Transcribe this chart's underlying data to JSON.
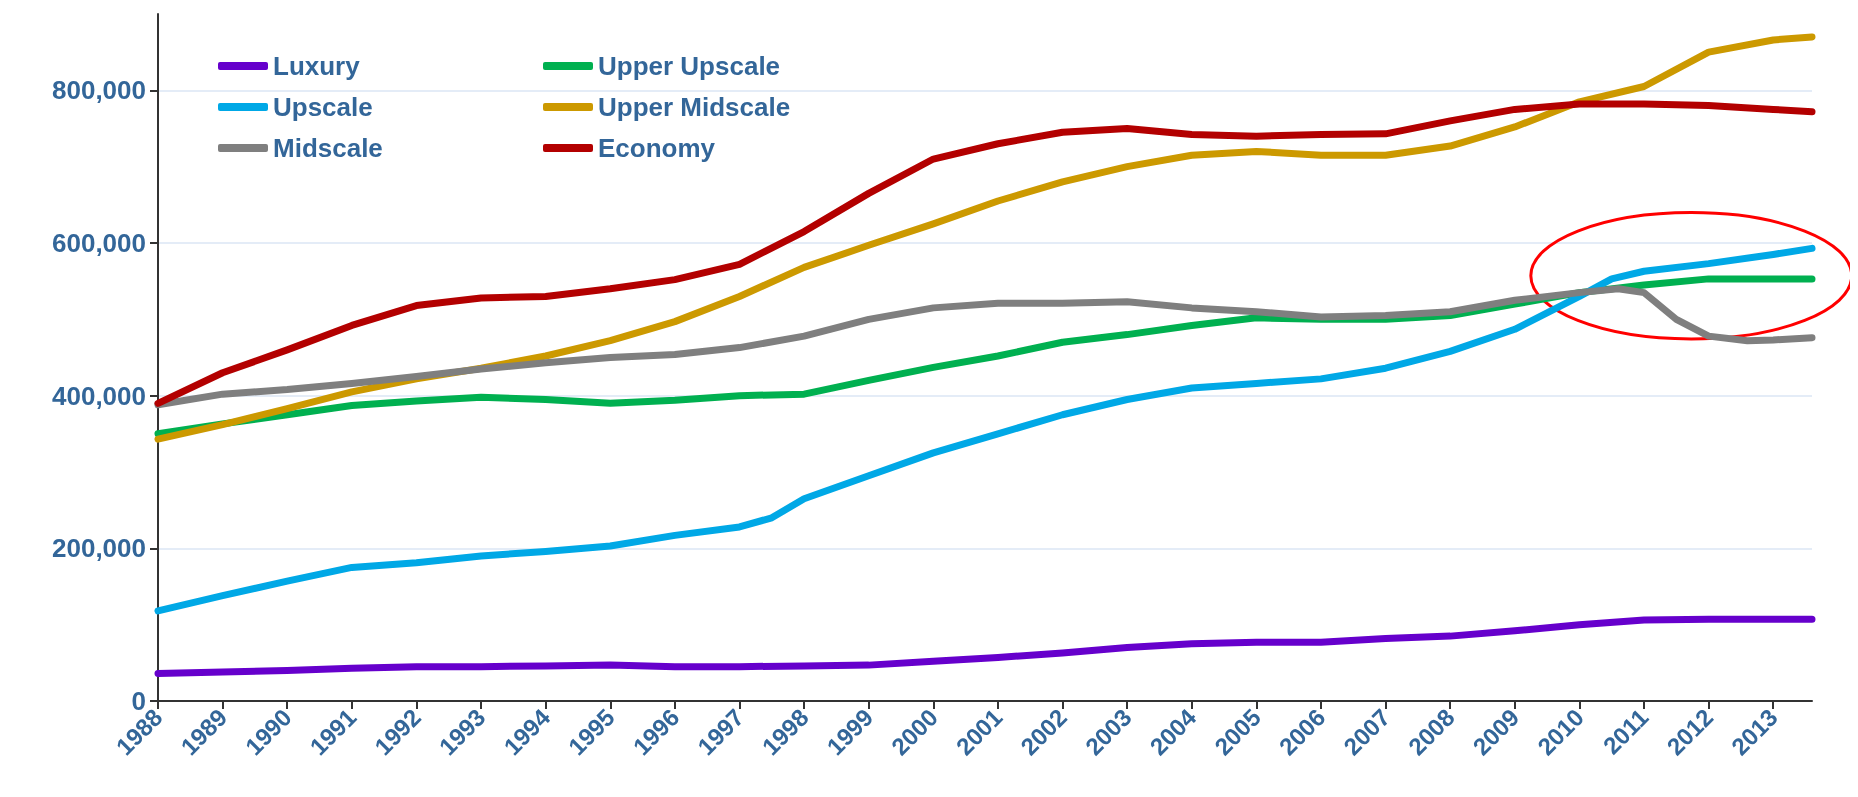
{
  "chart_data": {
    "type": "line",
    "xlim": [
      1988,
      2013.6
    ],
    "xticks": [
      1988,
      1989,
      1990,
      1991,
      1992,
      1993,
      1994,
      1995,
      1996,
      1997,
      1998,
      1999,
      2000,
      2001,
      2002,
      2003,
      2004,
      2005,
      2006,
      2007,
      2008,
      2009,
      2010,
      2011,
      2012,
      2013
    ],
    "ylim": [
      0,
      900000
    ],
    "yticks": [
      0,
      {
        "value": 200000,
        "label": "200,000"
      },
      {
        "value": 400000,
        "label": "400,000"
      },
      {
        "value": 600000,
        "label": "600,000"
      },
      {
        "value": 800000,
        "label": "800,000"
      }
    ],
    "grid": "y",
    "legend": "top left",
    "marker": "none",
    "line_style": "solid",
    "series": [
      {
        "name": "Luxury",
        "color": "#6600cc",
        "x": [
          1988,
          1989,
          1990,
          1991,
          1992,
          1993,
          1994,
          1995,
          1996,
          1997,
          1998,
          1999,
          2000,
          2001,
          2002,
          2003,
          2004,
          2005,
          2006,
          2007,
          2008,
          2009,
          2010,
          2011,
          2012,
          2013,
          2013.6
        ],
        "values": [
          36000,
          38000,
          40000,
          43000,
          45000,
          45000,
          46000,
          47000,
          45000,
          45000,
          46000,
          47000,
          52000,
          57000,
          63000,
          70000,
          75000,
          77000,
          77000,
          82000,
          85000,
          92000,
          100000,
          106000,
          107000,
          107000,
          107000
        ]
      },
      {
        "name": "Upper Upscale",
        "color": "#00b050",
        "x": [
          1988,
          1989,
          1990,
          1991,
          1992,
          1993,
          1994,
          1995,
          1996,
          1997,
          1998,
          1999,
          2000,
          2001,
          2002,
          2003,
          2004,
          2005,
          2006,
          2007,
          2008,
          2009,
          2010,
          2011,
          2012,
          2013,
          2013.6
        ],
        "values": [
          350000,
          363000,
          375000,
          387000,
          393000,
          398000,
          395000,
          390000,
          394000,
          400000,
          402000,
          420000,
          437000,
          452000,
          470000,
          480000,
          492000,
          502000,
          500000,
          500000,
          505000,
          520000,
          535000,
          545000,
          553000,
          553000,
          553000
        ]
      },
      {
        "name": "Upscale",
        "color": "#00a8e6",
        "x": [
          1988,
          1989,
          1990,
          1991,
          1992,
          1993,
          1994,
          1995,
          1996,
          1997,
          1997.5,
          1998,
          1999,
          2000,
          2001,
          2002,
          2003,
          2004,
          2005,
          2006,
          2007,
          2008,
          2009,
          2010,
          2010.5,
          2011,
          2012,
          2013,
          2013.6
        ],
        "values": [
          118000,
          138000,
          157000,
          175000,
          181000,
          190000,
          196000,
          203000,
          217000,
          228000,
          240000,
          265000,
          295000,
          325000,
          350000,
          375000,
          395000,
          410000,
          416000,
          422000,
          436000,
          458000,
          487000,
          530000,
          553000,
          563000,
          573000,
          585000,
          593000
        ]
      },
      {
        "name": "Upper Midscale",
        "color": "#cc9900",
        "x": [
          1988,
          1989,
          1990,
          1991,
          1992,
          1993,
          1994,
          1995,
          1996,
          1997,
          1998,
          1999,
          2000,
          2001,
          2002,
          2003,
          2004,
          2005,
          2006,
          2007,
          2008,
          2009,
          2010,
          2011,
          2012,
          2013,
          2013.6
        ],
        "values": [
          343000,
          362000,
          383000,
          405000,
          422000,
          436000,
          452000,
          472000,
          497000,
          530000,
          568000,
          597000,
          625000,
          655000,
          680000,
          700000,
          715000,
          720000,
          715000,
          715000,
          727000,
          752000,
          785000,
          805000,
          850000,
          866000,
          870000
        ]
      },
      {
        "name": "Midscale",
        "color": "#7f7f7f",
        "x": [
          1988,
          1989,
          1990,
          1991,
          1992,
          1993,
          1994,
          1995,
          1996,
          1997,
          1998,
          1999,
          2000,
          2001,
          2002,
          2003,
          2004,
          2005,
          2006,
          2007,
          2008,
          2009,
          2010,
          2010.6,
          2011,
          2011.5,
          2012,
          2012.6,
          2013,
          2013.6
        ],
        "values": [
          388000,
          402000,
          408000,
          416000,
          425000,
          435000,
          443000,
          450000,
          454000,
          463000,
          478000,
          500000,
          515000,
          521000,
          521000,
          523000,
          515000,
          510000,
          503000,
          505000,
          510000,
          525000,
          535000,
          540000,
          535000,
          500000,
          478000,
          472000,
          473000,
          476000
        ]
      },
      {
        "name": "Economy",
        "color": "#b30000",
        "x": [
          1988,
          1989,
          1990,
          1991,
          1992,
          1993,
          1994,
          1995,
          1996,
          1997,
          1998,
          1999,
          2000,
          2001,
          2002,
          2003,
          2004,
          2005,
          2006,
          2007,
          2008,
          2009,
          2010,
          2011,
          2012,
          2013,
          2013.6
        ],
        "values": [
          390000,
          430000,
          460000,
          492000,
          518000,
          528000,
          530000,
          540000,
          552000,
          572000,
          615000,
          665000,
          710000,
          730000,
          745000,
          750000,
          742000,
          740000,
          742000,
          743000,
          760000,
          775000,
          782000,
          782000,
          780000,
          775000,
          772000
        ]
      }
    ]
  }
}
